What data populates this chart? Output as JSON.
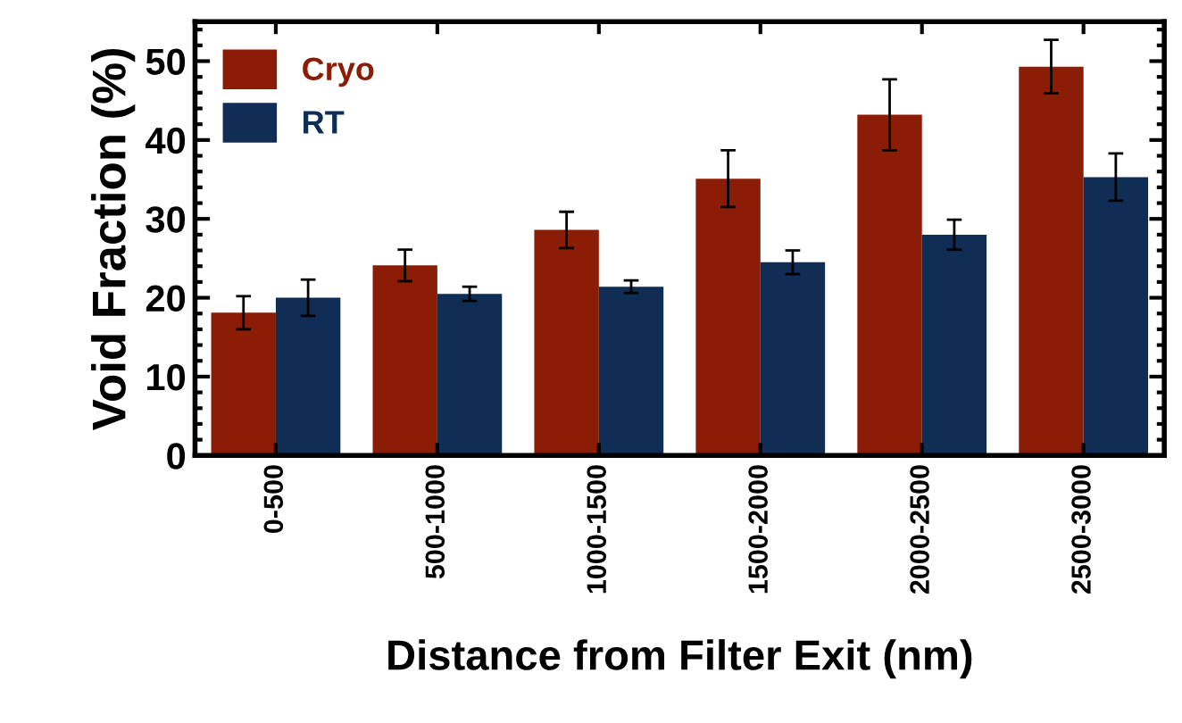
{
  "chart_data": {
    "type": "bar",
    "xlabel": "Distance from Filter Exit (nm)",
    "ylabel": "Void Fraction (%)",
    "categories": [
      "0-500",
      "500-1000",
      "1000-1500",
      "1500-2000",
      "2000-2500",
      "2500-3000"
    ],
    "series": [
      {
        "name": "Cryo",
        "color": "#8b1c05",
        "values": [
          18.1,
          24.1,
          28.6,
          35.1,
          43.2,
          49.3
        ],
        "errors": [
          2.1,
          2.0,
          2.3,
          3.6,
          4.5,
          3.4
        ]
      },
      {
        "name": "RT",
        "color": "#0f2d55",
        "values": [
          20.0,
          20.5,
          21.4,
          24.5,
          28.0,
          35.3
        ],
        "errors": [
          2.3,
          0.9,
          0.8,
          1.5,
          1.9,
          3.0
        ]
      }
    ],
    "ylim": [
      0,
      55
    ],
    "yticks": [
      0,
      10,
      20,
      30,
      40,
      50
    ],
    "grid": false,
    "legend": "top left"
  }
}
